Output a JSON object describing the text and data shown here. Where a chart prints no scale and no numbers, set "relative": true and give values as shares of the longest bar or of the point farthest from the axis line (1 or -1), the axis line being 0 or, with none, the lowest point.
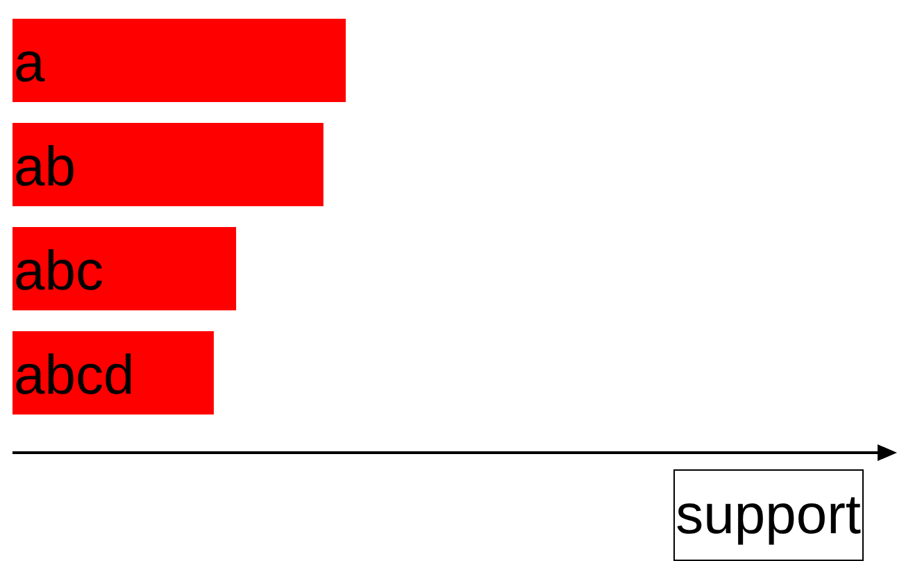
{
  "chart_data": {
    "type": "bar",
    "orientation": "horizontal",
    "relative": true,
    "annotations": [
      "support"
    ],
    "categories": [
      "a",
      "ab",
      "abc",
      "abcd"
    ],
    "values": [
      1,
      0.933,
      0.671,
      0.604
    ],
    "color": "#ff0000"
  }
}
